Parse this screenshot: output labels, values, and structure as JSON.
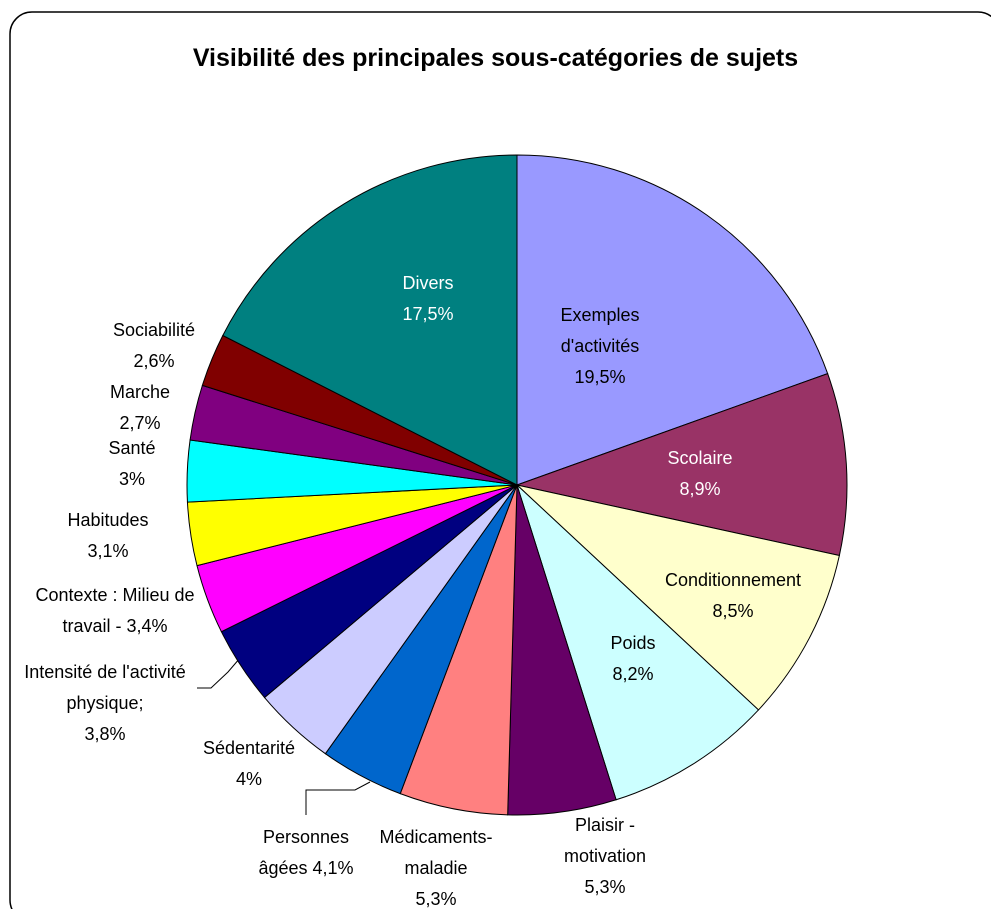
{
  "chart_data": {
    "type": "pie",
    "title": "Visibilité des principales sous-catégories de sujets",
    "categories": [
      "Exemples d'activités",
      "Scolaire",
      "Conditionnement",
      "Poids",
      "Plaisir - motivation",
      "Médicaments-maladie",
      "Personnes âgées",
      "Sédentarité",
      "Intensité de l'activité physique;",
      "Contexte : Milieu de travail -",
      "Habitudes",
      "Santé",
      "Marche",
      "Sociabilité",
      "Divers"
    ],
    "values": [
      19.5,
      8.9,
      8.5,
      8.2,
      5.3,
      5.3,
      4.1,
      4,
      3.8,
      3.4,
      3.1,
      3,
      2.7,
      2.6,
      17.5
    ],
    "value_labels": [
      "19,5%",
      "8,9%",
      "8,5%",
      "8,2%",
      "5,3%",
      "5,3%",
      "4,1%",
      "4%",
      "3,8%",
      "3,4%",
      "3,1%",
      "3%",
      "2,7%",
      "2,6%",
      "17,5%"
    ],
    "colors": [
      "#9999ff",
      "#993366",
      "#ffffcc",
      "#ccffff",
      "#660066",
      "#ff8080",
      "#0066cc",
      "#ccccff",
      "#000080",
      "#ff00ff",
      "#ffff00",
      "#00ffff",
      "#800080",
      "#800000",
      "#008080"
    ]
  }
}
